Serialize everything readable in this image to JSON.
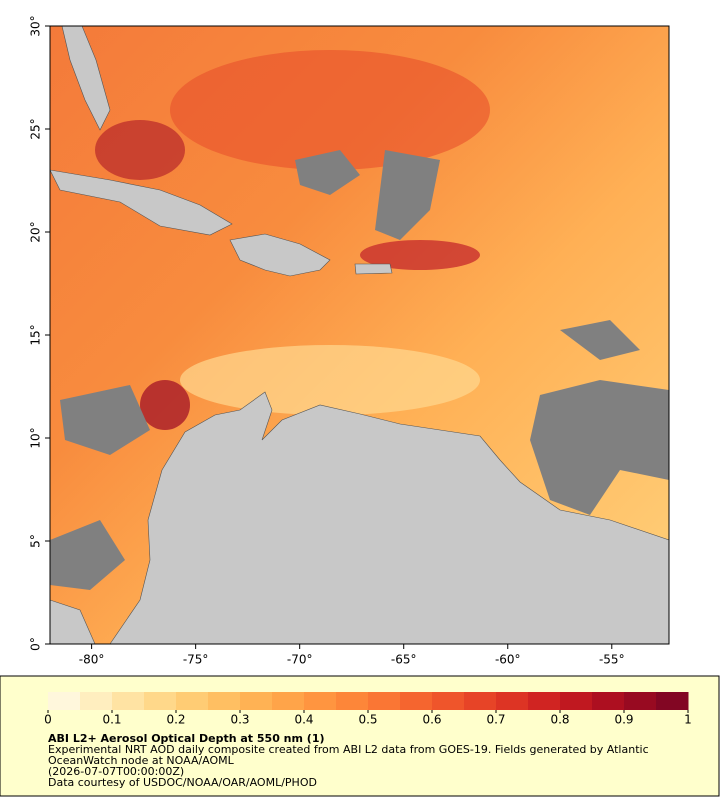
{
  "map": {
    "lonlim": [
      -82,
      -52.25
    ],
    "latlim": [
      0,
      30
    ],
    "lonticks": [
      {
        "value": -80,
        "label": "-80°"
      },
      {
        "value": -75,
        "label": "-75°"
      },
      {
        "value": -70,
        "label": "-70°"
      },
      {
        "value": -65,
        "label": "-65°"
      },
      {
        "value": -60,
        "label": "-60°"
      },
      {
        "value": -55,
        "label": "-55°"
      }
    ],
    "latticks": [
      {
        "value": 0,
        "label": "0°"
      },
      {
        "value": 5,
        "label": "5°"
      },
      {
        "value": 10,
        "label": "10°"
      },
      {
        "value": 15,
        "label": "15°"
      },
      {
        "value": 20,
        "label": "20°"
      },
      {
        "value": 25,
        "label": "25°"
      },
      {
        "value": 30,
        "label": "30°"
      }
    ]
  },
  "colorbar": {
    "range": [
      0,
      1
    ],
    "ticks": [
      0,
      0.1,
      0.2,
      0.3,
      0.4,
      0.5,
      0.6,
      0.7,
      0.8,
      0.9,
      1
    ],
    "colors": [
      "#fff7dc",
      "#ffeebf",
      "#ffe3a3",
      "#ffd88a",
      "#ffcc74",
      "#ffbf62",
      "#ffb254",
      "#ffa449",
      "#ff9540",
      "#fd8639",
      "#fa7634",
      "#f5652f",
      "#ef552b",
      "#e74427",
      "#dd3424",
      "#d02422",
      "#c01820",
      "#ad0f20",
      "#980a21",
      "#820623"
    ]
  },
  "title": "ABI L2+ Aerosol Optical Depth at 550 nm (1)",
  "caption": {
    "description": "Experimental NRT AOD daily composite created from ABI L2 data from GOES-19. Fields generated by Atlantic OceanWatch node at NOAA/AOML",
    "date": "(2026-07-07T00:00:00Z)",
    "credit": "Data courtesy of USDOC/NOAA/OAR/AOML/PHOD"
  }
}
